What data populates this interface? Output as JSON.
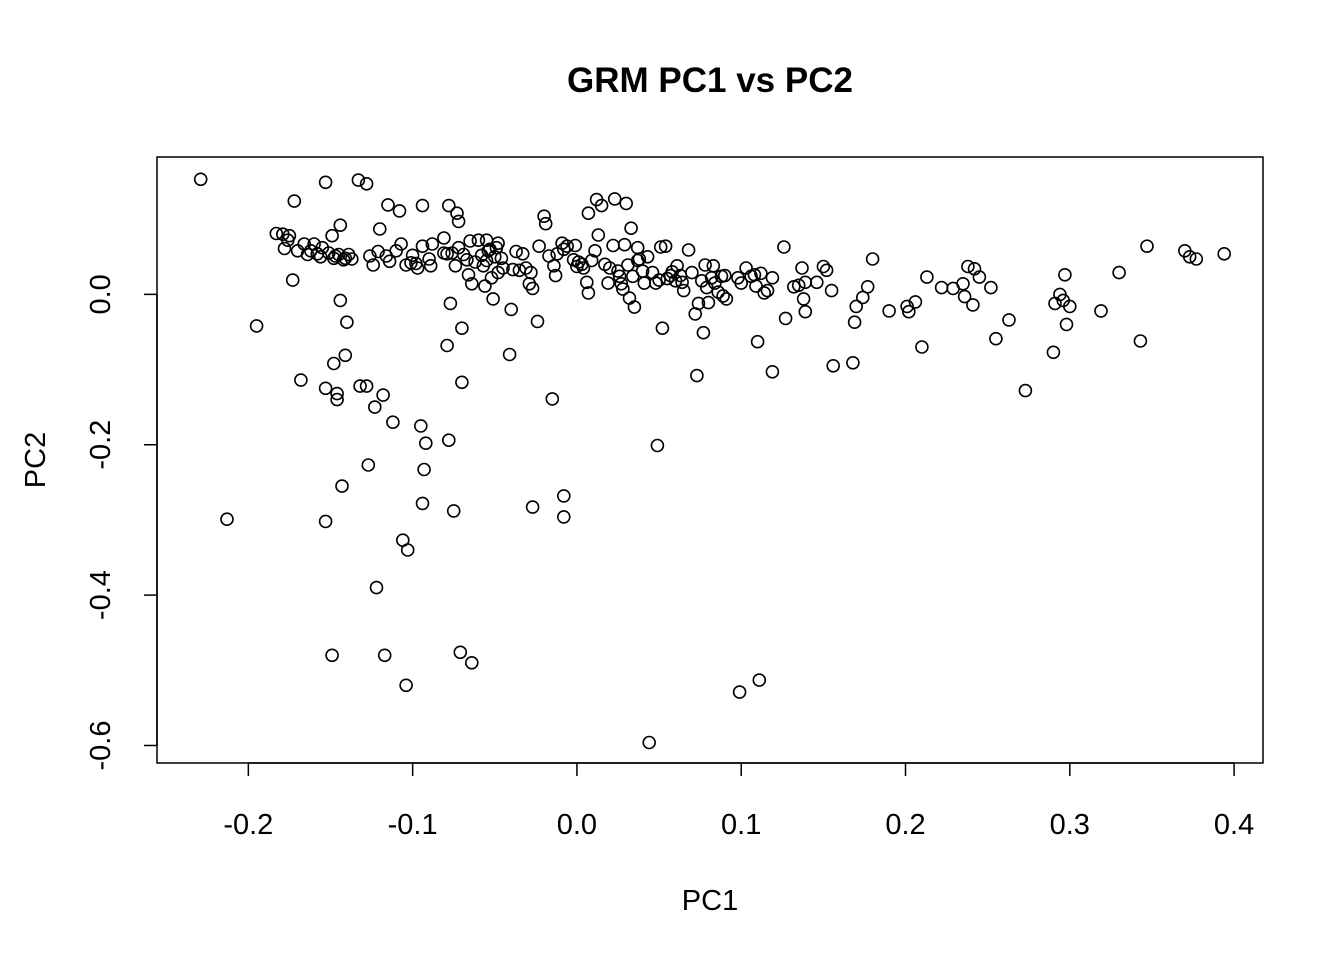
{
  "chart_data": {
    "type": "scatter",
    "title": "GRM PC1 vs PC2",
    "xlabel": "PC1",
    "ylabel": "PC2",
    "xlim": [
      -0.2556,
      0.4176
    ],
    "ylim": [
      -0.6233,
      0.1827
    ],
    "xticks": [
      -0.2,
      -0.1,
      0.0,
      0.1,
      0.2,
      0.3,
      0.4
    ],
    "xtick_labels": [
      "-0.2",
      "-0.1",
      "0.0",
      "0.1",
      "0.2",
      "0.3",
      "0.4"
    ],
    "yticks": [
      -0.6,
      -0.4,
      -0.2,
      0.0
    ],
    "ytick_labels": [
      "-0.6",
      "-0.4",
      "-0.2",
      "0.0"
    ],
    "grid": false,
    "marker": "open-circle",
    "points": [
      [
        -0.229,
        0.153
      ],
      [
        -0.213,
        -0.299
      ],
      [
        -0.195,
        -0.042
      ],
      [
        -0.183,
        0.081
      ],
      [
        -0.179,
        0.08
      ],
      [
        -0.178,
        0.061
      ],
      [
        -0.176,
        0.072
      ],
      [
        -0.175,
        0.078
      ],
      [
        -0.173,
        0.019
      ],
      [
        -0.172,
        0.124
      ],
      [
        -0.17,
        0.058
      ],
      [
        -0.168,
        -0.114
      ],
      [
        -0.166,
        0.067
      ],
      [
        -0.164,
        0.053
      ],
      [
        -0.162,
        0.058
      ],
      [
        -0.16,
        0.067
      ],
      [
        -0.158,
        0.054
      ],
      [
        -0.156,
        0.05
      ],
      [
        -0.155,
        0.062
      ],
      [
        -0.153,
        0.149
      ],
      [
        -0.153,
        -0.125
      ],
      [
        -0.153,
        -0.302
      ],
      [
        -0.151,
        0.055
      ],
      [
        -0.149,
        0.078
      ],
      [
        -0.149,
        -0.48
      ],
      [
        -0.148,
        0.048
      ],
      [
        -0.148,
        -0.092
      ],
      [
        -0.147,
        0.051
      ],
      [
        -0.146,
        -0.132
      ],
      [
        -0.146,
        -0.14
      ],
      [
        -0.145,
        0.053
      ],
      [
        -0.144,
        -0.008
      ],
      [
        -0.144,
        0.092
      ],
      [
        -0.143,
        -0.255
      ],
      [
        -0.142,
        0.046
      ],
      [
        -0.141,
        0.048
      ],
      [
        -0.141,
        -0.081
      ],
      [
        -0.14,
        -0.037
      ],
      [
        -0.139,
        0.053
      ],
      [
        -0.137,
        0.047
      ],
      [
        -0.133,
        0.152
      ],
      [
        -0.132,
        -0.122
      ],
      [
        -0.128,
        -0.122
      ],
      [
        -0.128,
        0.147
      ],
      [
        -0.127,
        -0.227
      ],
      [
        -0.126,
        0.051
      ],
      [
        -0.124,
        0.039
      ],
      [
        -0.123,
        -0.15
      ],
      [
        -0.122,
        -0.39
      ],
      [
        -0.121,
        0.057
      ],
      [
        -0.12,
        0.087
      ],
      [
        -0.118,
        -0.134
      ],
      [
        -0.117,
        -0.48
      ],
      [
        -0.116,
        0.051
      ],
      [
        -0.115,
        0.119
      ],
      [
        -0.114,
        0.044
      ],
      [
        -0.112,
        -0.17
      ],
      [
        -0.11,
        0.058
      ],
      [
        -0.108,
        0.111
      ],
      [
        -0.107,
        0.067
      ],
      [
        -0.106,
        -0.327
      ],
      [
        -0.104,
        -0.52
      ],
      [
        -0.104,
        0.039
      ],
      [
        -0.103,
        -0.34
      ],
      [
        -0.101,
        0.042
      ],
      [
        -0.1,
        0.052
      ],
      [
        -0.098,
        0.041
      ],
      [
        -0.097,
        0.035
      ],
      [
        -0.095,
        -0.175
      ],
      [
        -0.094,
        -0.278
      ],
      [
        -0.094,
        0.064
      ],
      [
        -0.094,
        0.118
      ],
      [
        -0.093,
        -0.233
      ],
      [
        -0.092,
        -0.198
      ],
      [
        -0.09,
        0.047
      ],
      [
        -0.089,
        0.038
      ],
      [
        -0.088,
        0.067
      ],
      [
        -0.081,
        0.075
      ],
      [
        -0.081,
        0.055
      ],
      [
        -0.079,
        0.054
      ],
      [
        -0.079,
        -0.068
      ],
      [
        -0.078,
        0.118
      ],
      [
        -0.078,
        -0.194
      ],
      [
        -0.077,
        -0.012
      ],
      [
        -0.076,
        0.055
      ],
      [
        -0.075,
        -0.288
      ],
      [
        -0.074,
        0.038
      ],
      [
        -0.073,
        0.108
      ],
      [
        -0.072,
        0.062
      ],
      [
        -0.072,
        0.097
      ],
      [
        -0.071,
        -0.476
      ],
      [
        -0.07,
        -0.117
      ],
      [
        -0.07,
        -0.045
      ],
      [
        -0.069,
        0.053
      ],
      [
        -0.067,
        0.046
      ],
      [
        -0.066,
        0.026
      ],
      [
        -0.065,
        0.071
      ],
      [
        -0.064,
        0.014
      ],
      [
        -0.064,
        -0.49
      ],
      [
        -0.062,
        0.043
      ],
      [
        -0.06,
        0.072
      ],
      [
        -0.058,
        0.052
      ],
      [
        -0.057,
        0.038
      ],
      [
        -0.056,
        0.011
      ],
      [
        -0.055,
        0.072
      ],
      [
        -0.055,
        0.045
      ],
      [
        -0.054,
        0.058
      ],
      [
        -0.053,
        0.06
      ],
      [
        -0.052,
        0.022
      ],
      [
        -0.051,
        -0.006
      ],
      [
        -0.05,
        0.05
      ],
      [
        -0.049,
        0.062
      ],
      [
        -0.048,
        0.029
      ],
      [
        -0.048,
        0.068
      ],
      [
        -0.046,
        0.048
      ],
      [
        -0.045,
        0.035
      ],
      [
        -0.041,
        -0.08
      ],
      [
        -0.04,
        -0.02
      ],
      [
        -0.039,
        0.033
      ],
      [
        -0.037,
        0.057
      ],
      [
        -0.035,
        0.032
      ],
      [
        -0.033,
        0.054
      ],
      [
        -0.031,
        0.035
      ],
      [
        -0.029,
        0.014
      ],
      [
        -0.028,
        0.029
      ],
      [
        -0.027,
        0.008
      ],
      [
        -0.027,
        -0.283
      ],
      [
        -0.024,
        -0.036
      ],
      [
        -0.023,
        0.064
      ],
      [
        -0.02,
        0.104
      ],
      [
        -0.019,
        0.094
      ],
      [
        -0.017,
        0.051
      ],
      [
        -0.015,
        -0.139
      ],
      [
        -0.014,
        0.038
      ],
      [
        -0.013,
        0.025
      ],
      [
        -0.012,
        0.054
      ],
      [
        -0.009,
        0.068
      ],
      [
        -0.008,
        0.06
      ],
      [
        -0.008,
        -0.268
      ],
      [
        -0.008,
        -0.296
      ],
      [
        -0.006,
        0.064
      ],
      [
        -0.002,
        0.046
      ],
      [
        -0.001,
        0.065
      ],
      [
        0.0,
        0.037
      ],
      [
        0.001,
        0.043
      ],
      [
        0.003,
        0.04
      ],
      [
        0.004,
        0.035
      ],
      [
        0.006,
        0.016
      ],
      [
        0.007,
        0.108
      ],
      [
        0.007,
        0.002
      ],
      [
        0.009,
        0.045
      ],
      [
        0.011,
        0.058
      ],
      [
        0.012,
        0.126
      ],
      [
        0.013,
        0.079
      ],
      [
        0.015,
        0.118
      ],
      [
        0.017,
        0.04
      ],
      [
        0.019,
        0.015
      ],
      [
        0.02,
        0.035
      ],
      [
        0.022,
        0.065
      ],
      [
        0.023,
        0.127
      ],
      [
        0.025,
        0.031
      ],
      [
        0.026,
        0.024
      ],
      [
        0.027,
        0.014
      ],
      [
        0.028,
        0.007
      ],
      [
        0.029,
        0.066
      ],
      [
        0.03,
        0.121
      ],
      [
        0.031,
        0.039
      ],
      [
        0.032,
        -0.005
      ],
      [
        0.033,
        0.088
      ],
      [
        0.034,
        0.024
      ],
      [
        0.035,
        -0.017
      ],
      [
        0.037,
        0.045
      ],
      [
        0.037,
        0.062
      ],
      [
        0.038,
        0.047
      ],
      [
        0.04,
        0.031
      ],
      [
        0.041,
        0.015
      ],
      [
        0.043,
        0.05
      ],
      [
        0.044,
        -0.596
      ],
      [
        0.046,
        0.029
      ],
      [
        0.048,
        0.015
      ],
      [
        0.049,
        -0.201
      ],
      [
        0.05,
        0.019
      ],
      [
        0.051,
        0.063
      ],
      [
        0.052,
        -0.045
      ],
      [
        0.054,
        0.064
      ],
      [
        0.055,
        0.021
      ],
      [
        0.057,
        0.025
      ],
      [
        0.058,
        0.03
      ],
      [
        0.06,
        0.018
      ],
      [
        0.061,
        0.038
      ],
      [
        0.063,
        0.025
      ],
      [
        0.064,
        0.016
      ],
      [
        0.065,
        0.005
      ],
      [
        0.068,
        0.059
      ],
      [
        0.07,
        0.029
      ],
      [
        0.072,
        -0.026
      ],
      [
        0.073,
        -0.108
      ],
      [
        0.074,
        -0.012
      ],
      [
        0.076,
        0.018
      ],
      [
        0.077,
        -0.051
      ],
      [
        0.078,
        0.039
      ],
      [
        0.079,
        0.009
      ],
      [
        0.08,
        -0.011
      ],
      [
        0.082,
        0.022
      ],
      [
        0.083,
        0.038
      ],
      [
        0.084,
        0.015
      ],
      [
        0.086,
        0.003
      ],
      [
        0.088,
        0.024
      ],
      [
        0.089,
        -0.002
      ],
      [
        0.09,
        0.025
      ],
      [
        0.091,
        -0.006
      ],
      [
        0.098,
        0.022
      ],
      [
        0.099,
        -0.529
      ],
      [
        0.1,
        0.015
      ],
      [
        0.103,
        0.035
      ],
      [
        0.106,
        0.024
      ],
      [
        0.108,
        0.026
      ],
      [
        0.109,
        0.011
      ],
      [
        0.11,
        -0.063
      ],
      [
        0.111,
        -0.513
      ],
      [
        0.112,
        0.028
      ],
      [
        0.114,
        0.002
      ],
      [
        0.116,
        0.005
      ],
      [
        0.119,
        0.022
      ],
      [
        0.119,
        -0.103
      ],
      [
        0.126,
        0.063
      ],
      [
        0.127,
        -0.032
      ],
      [
        0.132,
        0.01
      ],
      [
        0.135,
        0.012
      ],
      [
        0.137,
        0.035
      ],
      [
        0.138,
        -0.006
      ],
      [
        0.139,
        0.016
      ],
      [
        0.139,
        -0.023
      ],
      [
        0.146,
        0.016
      ],
      [
        0.15,
        0.037
      ],
      [
        0.152,
        0.032
      ],
      [
        0.155,
        0.005
      ],
      [
        0.156,
        -0.095
      ],
      [
        0.168,
        -0.091
      ],
      [
        0.169,
        -0.037
      ],
      [
        0.17,
        -0.016
      ],
      [
        0.174,
        -0.004
      ],
      [
        0.177,
        0.01
      ],
      [
        0.18,
        0.047
      ],
      [
        0.19,
        -0.022
      ],
      [
        0.201,
        -0.016
      ],
      [
        0.202,
        -0.023
      ],
      [
        0.206,
        -0.01
      ],
      [
        0.21,
        -0.07
      ],
      [
        0.213,
        0.023
      ],
      [
        0.222,
        0.009
      ],
      [
        0.229,
        0.008
      ],
      [
        0.235,
        0.014
      ],
      [
        0.236,
        -0.003
      ],
      [
        0.238,
        0.037
      ],
      [
        0.241,
        -0.014
      ],
      [
        0.242,
        0.034
      ],
      [
        0.245,
        0.023
      ],
      [
        0.252,
        0.009
      ],
      [
        0.255,
        -0.059
      ],
      [
        0.263,
        -0.034
      ],
      [
        0.273,
        -0.128
      ],
      [
        0.29,
        -0.077
      ],
      [
        0.291,
        -0.012
      ],
      [
        0.294,
        0.0
      ],
      [
        0.296,
        -0.008
      ],
      [
        0.297,
        0.026
      ],
      [
        0.298,
        -0.04
      ],
      [
        0.3,
        -0.016
      ],
      [
        0.319,
        -0.022
      ],
      [
        0.33,
        0.029
      ],
      [
        0.343,
        -0.062
      ],
      [
        0.347,
        0.064
      ],
      [
        0.37,
        0.058
      ],
      [
        0.373,
        0.05
      ],
      [
        0.377,
        0.047
      ],
      [
        0.394,
        0.054
      ]
    ]
  }
}
